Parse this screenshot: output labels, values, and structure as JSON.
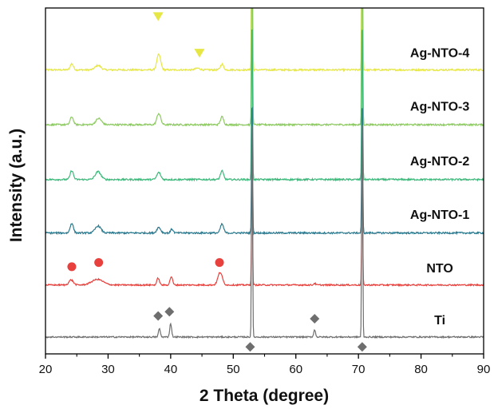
{
  "chart_data": {
    "type": "line",
    "title": "",
    "xlabel": "2 Theta (degree)",
    "ylabel": "Intensity (a.u.)",
    "xlim": [
      20,
      90
    ],
    "xticks": [
      20,
      30,
      40,
      50,
      60,
      70,
      80,
      90
    ],
    "yticks_shown": false,
    "grid": false,
    "legend": "none",
    "series": [
      {
        "name": "Ag-NTO-4",
        "color": "#e6e645",
        "baseline": 8.4,
        "peaks": [
          [
            24.2,
            0.22,
            0.25
          ],
          [
            28.4,
            0.16,
            0.45
          ],
          [
            38.1,
            0.55,
            0.3
          ],
          [
            44.3,
            0.06,
            0.35
          ],
          [
            48.2,
            0.2,
            0.25
          ],
          [
            53.0,
            8.0,
            0.08
          ],
          [
            70.6,
            8.0,
            0.08
          ]
        ],
        "noise": 0.03
      },
      {
        "name": "Ag-NTO-3",
        "color": "#8cc960",
        "baseline": 6.45,
        "peaks": [
          [
            24.2,
            0.28,
            0.25
          ],
          [
            28.5,
            0.22,
            0.45
          ],
          [
            38.1,
            0.4,
            0.3
          ],
          [
            48.2,
            0.28,
            0.25
          ],
          [
            53.0,
            7.0,
            0.08
          ],
          [
            70.6,
            7.0,
            0.08
          ]
        ],
        "noise": 0.03
      },
      {
        "name": "Ag-NTO-2",
        "color": "#3db87a",
        "baseline": 4.5,
        "peaks": [
          [
            24.2,
            0.32,
            0.25
          ],
          [
            28.4,
            0.28,
            0.45
          ],
          [
            38.1,
            0.25,
            0.3
          ],
          [
            48.2,
            0.3,
            0.25
          ],
          [
            53.0,
            6.0,
            0.08
          ],
          [
            70.6,
            6.0,
            0.08
          ]
        ],
        "noise": 0.03
      },
      {
        "name": "Ag-NTO-1",
        "color": "#2b7a8f",
        "baseline": 2.6,
        "peaks": [
          [
            24.2,
            0.35,
            0.25
          ],
          [
            28.4,
            0.25,
            0.45
          ],
          [
            38.1,
            0.2,
            0.3
          ],
          [
            40.2,
            0.14,
            0.2
          ],
          [
            48.2,
            0.32,
            0.25
          ],
          [
            53.0,
            5.0,
            0.08
          ],
          [
            70.6,
            5.0,
            0.08
          ]
        ],
        "noise": 0.03
      },
      {
        "name": "NTO",
        "color": "#e8403c",
        "baseline": 0.75,
        "peaks": [
          [
            24.1,
            0.18,
            0.35
          ],
          [
            28.3,
            0.2,
            0.9
          ],
          [
            38.0,
            0.25,
            0.2
          ],
          [
            40.1,
            0.3,
            0.2
          ],
          [
            47.9,
            0.45,
            0.35
          ],
          [
            53.0,
            4.0,
            0.08
          ],
          [
            63.0,
            0.06,
            0.15
          ],
          [
            70.6,
            4.0,
            0.08
          ]
        ],
        "noise": 0.025
      },
      {
        "name": "Ti",
        "color": "#6e6e6e",
        "baseline": -1.1,
        "peaks": [
          [
            38.2,
            0.3,
            0.15
          ],
          [
            40.0,
            0.48,
            0.15
          ],
          [
            53.0,
            8.5,
            0.08
          ],
          [
            63.0,
            0.25,
            0.15
          ],
          [
            70.6,
            8.5,
            0.08
          ]
        ],
        "noise": 0.025
      }
    ],
    "markers": [
      {
        "shape": "circle",
        "color": "#e8403c",
        "points": [
          [
            24.2,
            1.4
          ],
          [
            28.5,
            1.55
          ],
          [
            47.8,
            1.55
          ]
        ]
      },
      {
        "shape": "triangle-down",
        "color": "#e6e645",
        "points": [
          [
            38.0,
            10.3
          ],
          [
            44.6,
            9.0
          ]
        ]
      },
      {
        "shape": "diamond",
        "color": "#6e6e6e",
        "points": [
          [
            38.0,
            -0.35
          ],
          [
            39.8,
            -0.2
          ],
          [
            63.0,
            -0.45
          ],
          [
            52.7,
            -1.45
          ],
          [
            70.6,
            -1.45
          ]
        ]
      }
    ],
    "labels": [
      {
        "text": "Ag-NTO-4",
        "x": 83,
        "y": 8.85
      },
      {
        "text": "Ag-NTO-3",
        "x": 83,
        "y": 6.95
      },
      {
        "text": "Ag-NTO-2",
        "x": 83,
        "y": 5.0
      },
      {
        "text": "Ag-NTO-1",
        "x": 83,
        "y": 3.1
      },
      {
        "text": "NTO",
        "x": 83,
        "y": 1.2
      },
      {
        "text": "Ti",
        "x": 83,
        "y": -0.65
      }
    ]
  }
}
